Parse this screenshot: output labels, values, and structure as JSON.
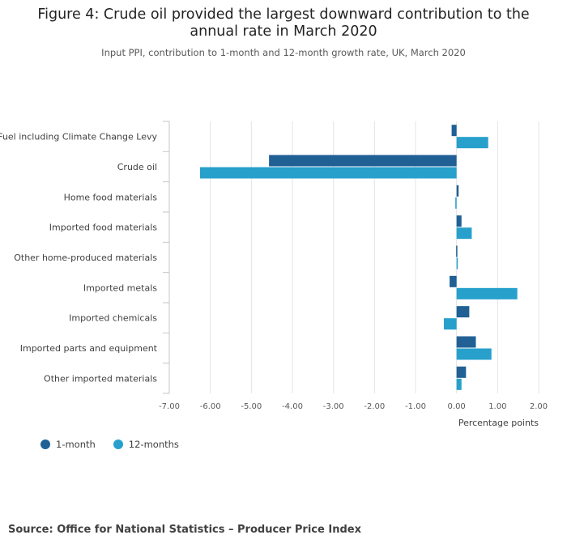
{
  "chart_data": {
    "type": "bar",
    "orientation": "horizontal",
    "title_lines": [
      "Figure 4: Crude oil provided the largest downward contribution to the",
      "annual rate in March 2020"
    ],
    "subtitle": "Input PPI, contribution to 1-month and 12-month growth rate, UK, March 2020",
    "categories": [
      "Fuel including Climate Change Levy",
      "Crude oil",
      "Home food materials",
      "Imported food materials",
      "Other home-produced materials",
      "Imported metals",
      "Imported chemicals",
      "Imported parts and equipment",
      "Other imported materials"
    ],
    "series": [
      {
        "name": "1-month",
        "color": "#206095",
        "values": [
          -0.12,
          -4.57,
          0.05,
          0.12,
          -0.01,
          -0.17,
          0.31,
          0.47,
          0.23
        ]
      },
      {
        "name": "12-months",
        "color": "#27a0cc",
        "values": [
          0.77,
          -6.25,
          -0.03,
          0.37,
          0.02,
          1.48,
          -0.31,
          0.85,
          0.12
        ]
      }
    ],
    "xlabel": "Percentage points",
    "xlim": [
      -7,
      2
    ],
    "xticks": [
      -7,
      -6,
      -5,
      -4,
      -3,
      -2,
      -1,
      0,
      1,
      2
    ],
    "xtick_labels": [
      "-7.00",
      "-6.00",
      "-5.00",
      "-4.00",
      "-3.00",
      "-2.00",
      "-1.00",
      "0.00",
      "1.00",
      "2.00"
    ],
    "grid": true,
    "legend_position": "bottom-left"
  },
  "source": "Source: Office for National Statistics – Producer Price Index"
}
